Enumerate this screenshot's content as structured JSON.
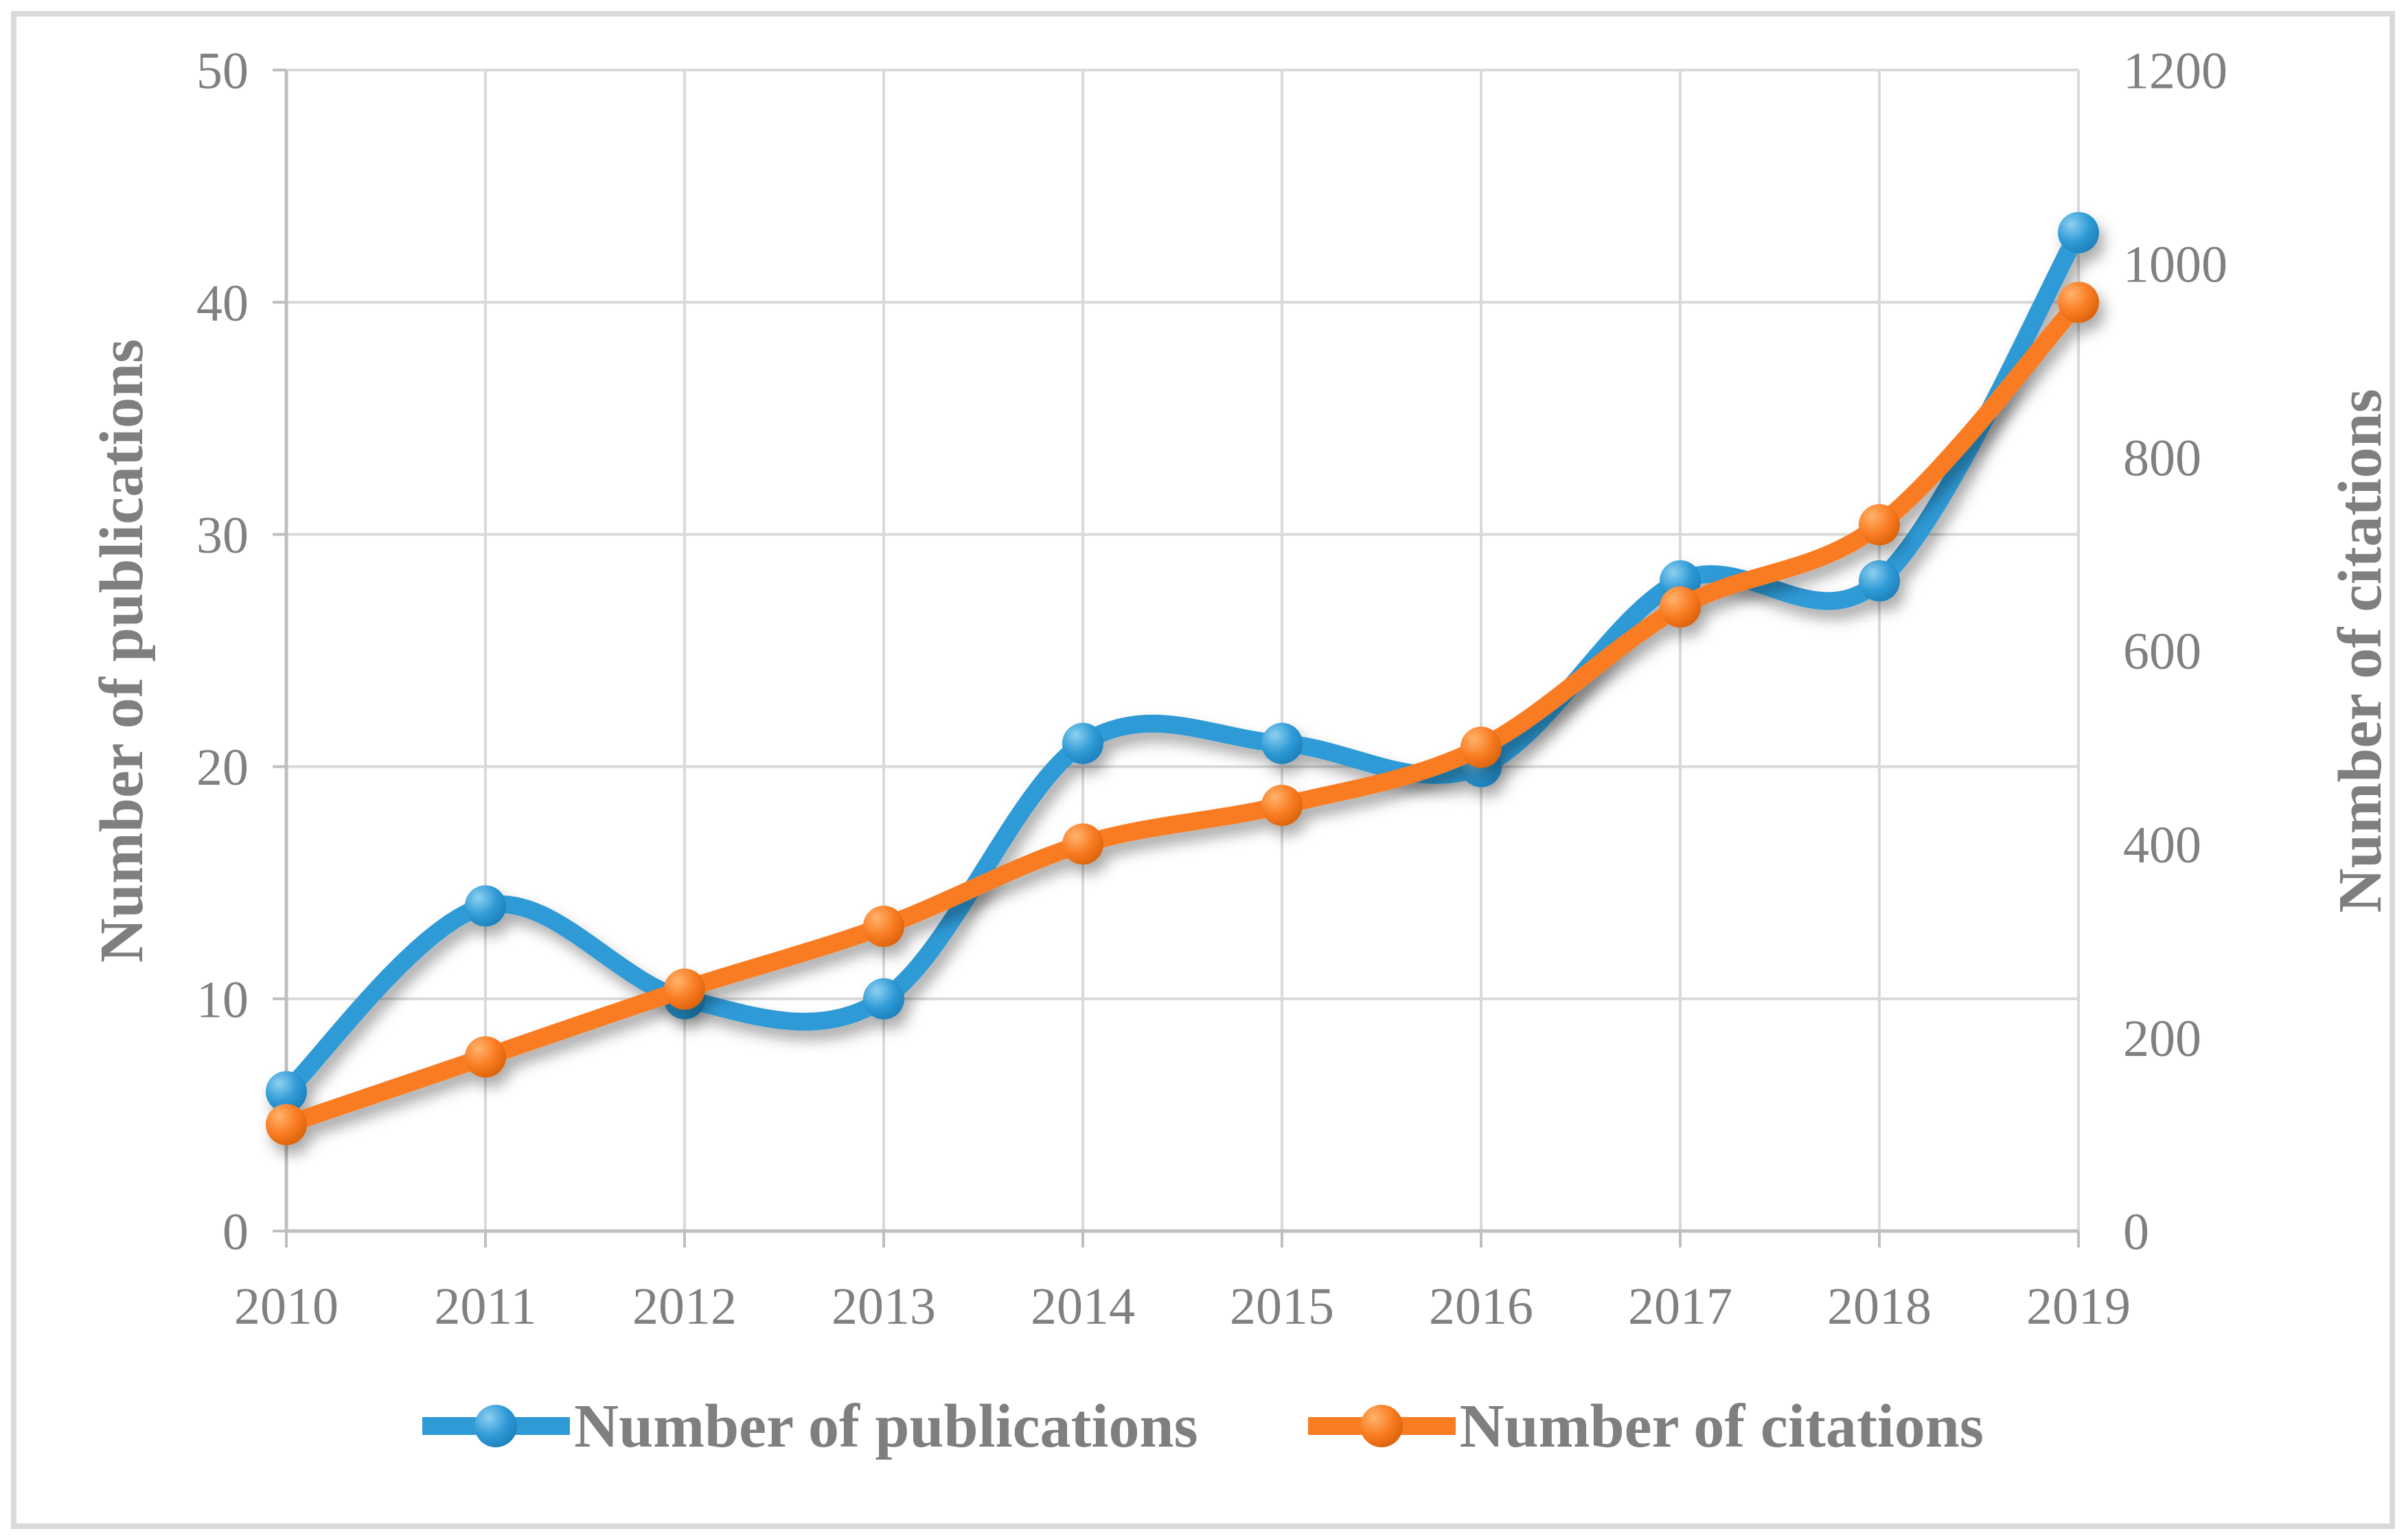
{
  "figure": {
    "background": "#ffffff",
    "border_color": "#d9d9d9"
  },
  "chart_data": {
    "type": "line",
    "smoothed": true,
    "grid": true,
    "legend_position": "bottom",
    "x": [
      "2010",
      "2011",
      "2012",
      "2013",
      "2014",
      "2015",
      "2016",
      "2017",
      "2018",
      "2019"
    ],
    "series": [
      {
        "name": "Number of publications",
        "axis": "left",
        "color": "#2e9ad6",
        "marker_highlight": "#8ed0f0",
        "marker_edge": "#1b7db8",
        "values": [
          6,
          14,
          10,
          10,
          21,
          21,
          20,
          28,
          28,
          43
        ]
      },
      {
        "name": "Number of citations",
        "axis": "right",
        "color": "#f97b22",
        "marker_highlight": "#ffb36b",
        "marker_edge": "#d55f07",
        "values": [
          110,
          180,
          250,
          315,
          400,
          440,
          500,
          645,
          730,
          960
        ]
      }
    ],
    "left_axis": {
      "title": "Number of publications",
      "min": 0,
      "max": 50,
      "ticks": [
        0,
        10,
        20,
        30,
        40,
        50
      ]
    },
    "right_axis": {
      "title": "Number of citations",
      "min": 0,
      "max": 1200,
      "ticks": [
        0,
        200,
        400,
        600,
        800,
        1000,
        1200
      ]
    },
    "styles": {
      "grid_color": "#d9d9d9",
      "axis_line_color": "#bfbfbf",
      "tick_label_color": "#808080",
      "title_color": "#7f7f7f"
    }
  },
  "legend": {
    "items": [
      {
        "label": "Number of publications"
      },
      {
        "label": "Number of citations"
      }
    ]
  }
}
